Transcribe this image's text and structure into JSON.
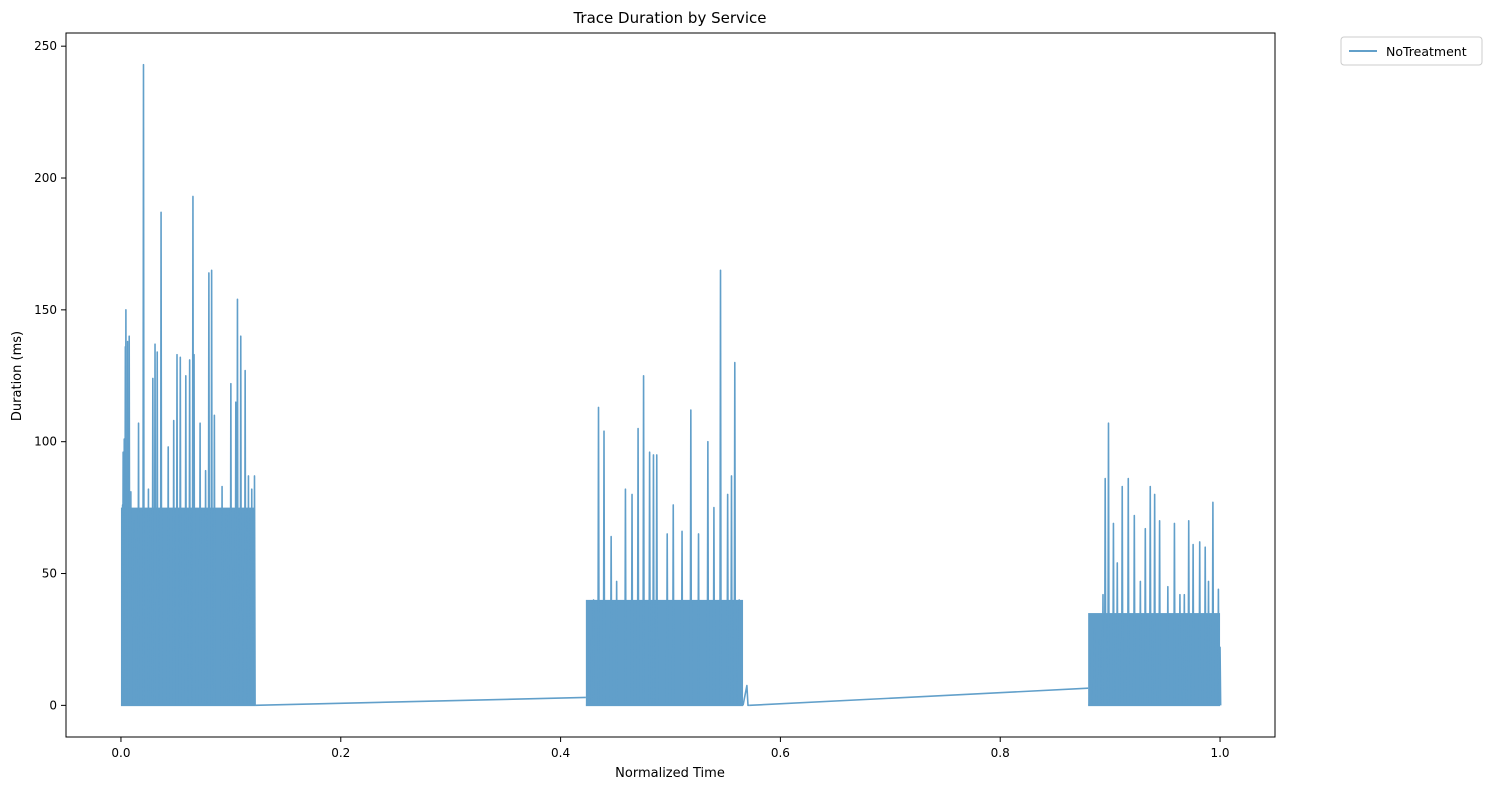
{
  "chart_data": {
    "type": "line",
    "title": "Trace Duration by Service",
    "xlabel": "Normalized Time",
    "ylabel": "Duration (ms)",
    "xlim": [
      -0.05,
      1.05
    ],
    "ylim": [
      -12,
      255
    ],
    "x_ticks": [
      0.0,
      0.2,
      0.4,
      0.6,
      0.8,
      1.0
    ],
    "x_tick_labels": [
      "0.0",
      "0.2",
      "0.4",
      "0.6",
      "0.8",
      "1.0"
    ],
    "y_ticks": [
      0,
      50,
      100,
      150,
      200,
      250
    ],
    "y_tick_labels": [
      "0",
      "50",
      "100",
      "150",
      "200",
      "250"
    ],
    "grid": false,
    "legend_position": "outside-top-right",
    "series": [
      {
        "name": "NoTreatment",
        "color": "#1f77b4",
        "opacity": 0.7,
        "clusters": [
          {
            "x_range": [
              0.0,
              0.122
            ],
            "baseline": 0,
            "fill_level": 75,
            "peaks": [
              {
                "x": 0.0015,
                "y": 76
              },
              {
                "x": 0.002,
                "y": 96
              },
              {
                "x": 0.003,
                "y": 101
              },
              {
                "x": 0.004,
                "y": 136
              },
              {
                "x": 0.0045,
                "y": 150
              },
              {
                "x": 0.006,
                "y": 138
              },
              {
                "x": 0.0075,
                "y": 140
              },
              {
                "x": 0.009,
                "y": 81
              },
              {
                "x": 0.012,
                "y": 70
              },
              {
                "x": 0.016,
                "y": 107
              },
              {
                "x": 0.0205,
                "y": 243
              },
              {
                "x": 0.025,
                "y": 82
              },
              {
                "x": 0.029,
                "y": 124
              },
              {
                "x": 0.031,
                "y": 137
              },
              {
                "x": 0.033,
                "y": 134
              },
              {
                "x": 0.0365,
                "y": 187
              },
              {
                "x": 0.043,
                "y": 98
              },
              {
                "x": 0.048,
                "y": 108
              },
              {
                "x": 0.051,
                "y": 133
              },
              {
                "x": 0.054,
                "y": 132
              },
              {
                "x": 0.059,
                "y": 125
              },
              {
                "x": 0.0625,
                "y": 131
              },
              {
                "x": 0.0655,
                "y": 193
              },
              {
                "x": 0.0665,
                "y": 133
              },
              {
                "x": 0.072,
                "y": 107
              },
              {
                "x": 0.077,
                "y": 89
              },
              {
                "x": 0.08,
                "y": 164
              },
              {
                "x": 0.0825,
                "y": 165
              },
              {
                "x": 0.085,
                "y": 110
              },
              {
                "x": 0.092,
                "y": 83
              },
              {
                "x": 0.096,
                "y": 72
              },
              {
                "x": 0.1,
                "y": 122
              },
              {
                "x": 0.1045,
                "y": 115
              },
              {
                "x": 0.106,
                "y": 154
              },
              {
                "x": 0.109,
                "y": 140
              },
              {
                "x": 0.113,
                "y": 127
              },
              {
                "x": 0.116,
                "y": 87
              },
              {
                "x": 0.119,
                "y": 82
              },
              {
                "x": 0.1215,
                "y": 87
              }
            ]
          },
          {
            "x_range": [
              0.423,
              0.566
            ],
            "baseline": 0,
            "fill_level": 40,
            "peaks": [
              {
                "x": 0.426,
                "y": 28
              },
              {
                "x": 0.43,
                "y": 40
              },
              {
                "x": 0.4345,
                "y": 113
              },
              {
                "x": 0.4395,
                "y": 104
              },
              {
                "x": 0.446,
                "y": 64
              },
              {
                "x": 0.451,
                "y": 47
              },
              {
                "x": 0.459,
                "y": 82
              },
              {
                "x": 0.465,
                "y": 80
              },
              {
                "x": 0.4705,
                "y": 105
              },
              {
                "x": 0.4755,
                "y": 125
              },
              {
                "x": 0.481,
                "y": 96
              },
              {
                "x": 0.4845,
                "y": 95
              },
              {
                "x": 0.4875,
                "y": 95
              },
              {
                "x": 0.497,
                "y": 65
              },
              {
                "x": 0.5025,
                "y": 76
              },
              {
                "x": 0.5105,
                "y": 66
              },
              {
                "x": 0.5185,
                "y": 112
              },
              {
                "x": 0.5255,
                "y": 65
              },
              {
                "x": 0.534,
                "y": 100
              },
              {
                "x": 0.5395,
                "y": 75
              },
              {
                "x": 0.5455,
                "y": 165
              },
              {
                "x": 0.552,
                "y": 80
              },
              {
                "x": 0.5555,
                "y": 87
              },
              {
                "x": 0.5585,
                "y": 130
              },
              {
                "x": 0.5625,
                "y": 40
              },
              {
                "x": 0.5645,
                "y": 15
              }
            ]
          },
          {
            "x_range": [
              0.88,
              1.0
            ],
            "baseline": 0,
            "fill_level": 35,
            "peaks": [
              {
                "x": 0.8815,
                "y": 21
              },
              {
                "x": 0.8855,
                "y": 29
              },
              {
                "x": 0.89,
                "y": 25
              },
              {
                "x": 0.8935,
                "y": 42
              },
              {
                "x": 0.8955,
                "y": 86
              },
              {
                "x": 0.8985,
                "y": 107
              },
              {
                "x": 0.903,
                "y": 69
              },
              {
                "x": 0.9065,
                "y": 54
              },
              {
                "x": 0.911,
                "y": 83
              },
              {
                "x": 0.9165,
                "y": 86
              },
              {
                "x": 0.922,
                "y": 72
              },
              {
                "x": 0.9275,
                "y": 47
              },
              {
                "x": 0.932,
                "y": 67
              },
              {
                "x": 0.9365,
                "y": 83
              },
              {
                "x": 0.9405,
                "y": 80
              },
              {
                "x": 0.945,
                "y": 70
              },
              {
                "x": 0.9525,
                "y": 45
              },
              {
                "x": 0.9585,
                "y": 69
              },
              {
                "x": 0.9635,
                "y": 42
              },
              {
                "x": 0.9675,
                "y": 42
              },
              {
                "x": 0.9715,
                "y": 70
              },
              {
                "x": 0.9755,
                "y": 61
              },
              {
                "x": 0.9815,
                "y": 62
              },
              {
                "x": 0.9865,
                "y": 60
              },
              {
                "x": 0.9895,
                "y": 47
              },
              {
                "x": 0.9935,
                "y": 77
              },
              {
                "x": 0.9985,
                "y": 44
              },
              {
                "x": 1.0,
                "y": 22
              }
            ]
          }
        ],
        "connectors": [
          {
            "x": [
              0.122,
              0.423
            ],
            "y": [
              0,
              3
            ]
          },
          {
            "x": [
              0.566,
              0.5695,
              0.5705,
              0.572
            ],
            "y": [
              0,
              7.5,
              0,
              0
            ]
          },
          {
            "x": [
              0.572,
              0.88
            ],
            "y": [
              0,
              6.5
            ]
          }
        ]
      }
    ]
  }
}
